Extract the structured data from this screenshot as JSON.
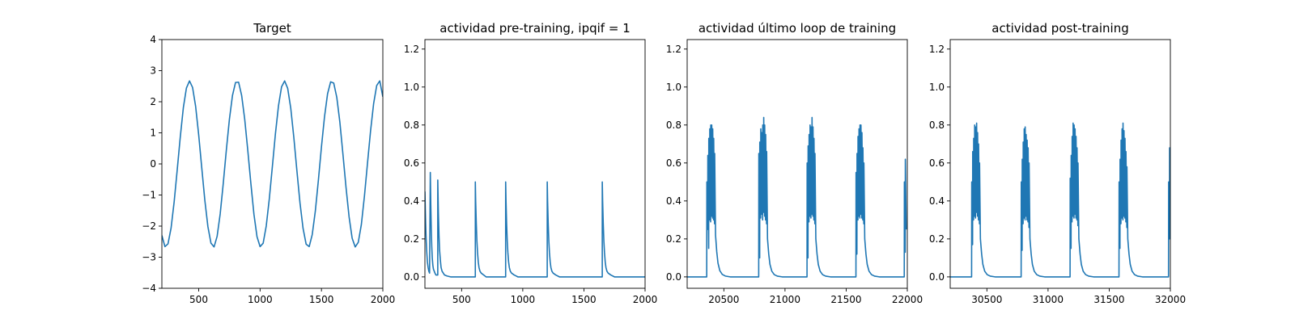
{
  "chart_data": [
    {
      "type": "line",
      "title": "Target",
      "xlim": [
        200,
        2000
      ],
      "ylim": [
        -4,
        4
      ],
      "x_ticks": [
        500,
        1000,
        1500,
        2000
      ],
      "y_ticks": [
        -4,
        -3,
        -2,
        -1,
        0,
        1,
        2,
        3,
        4
      ],
      "series": [
        {
          "color": "#1f77b4",
          "x": [
            200,
            225,
            250,
            275,
            300,
            325,
            350,
            375,
            400,
            425,
            450,
            475,
            500,
            525,
            550,
            575,
            600,
            625,
            650,
            675,
            700,
            725,
            750,
            775,
            800,
            825,
            850,
            875,
            900,
            925,
            950,
            975,
            1000,
            1025,
            1050,
            1075,
            1100,
            1125,
            1150,
            1175,
            1200,
            1225,
            1250,
            1275,
            1300,
            1325,
            1350,
            1375,
            1400,
            1425,
            1450,
            1475,
            1500,
            1525,
            1550,
            1575,
            1600,
            1625,
            1650,
            1675,
            1700,
            1725,
            1750,
            1775,
            1800,
            1825,
            1850,
            1875,
            1900,
            1925,
            1950,
            1975,
            2000
          ],
          "y": [
            -2.3,
            -2.66,
            -2.57,
            -2.06,
            -1.22,
            -0.19,
            0.87,
            1.81,
            2.44,
            2.67,
            2.46,
            1.85,
            0.93,
            -0.13,
            -1.17,
            -2.02,
            -2.55,
            -2.67,
            -2.33,
            -1.61,
            -0.63,
            0.44,
            1.43,
            2.2,
            2.62,
            2.63,
            2.2,
            1.43,
            0.43,
            -0.63,
            -1.62,
            -2.34,
            -2.66,
            -2.55,
            -2.0,
            -1.13,
            -0.09,
            0.97,
            1.87,
            2.48,
            2.67,
            2.43,
            1.79,
            0.85,
            -0.22,
            -1.25,
            -2.07,
            -2.58,
            -2.66,
            -2.27,
            -1.52,
            -0.52,
            0.55,
            1.52,
            2.26,
            2.64,
            2.6,
            2.14,
            1.34,
            0.31,
            -0.75,
            -1.7,
            -2.39,
            -2.67,
            -2.52,
            -1.95,
            -1.04,
            0.02,
            1.06,
            1.94,
            2.52,
            2.67,
            2.16
          ]
        }
      ]
    },
    {
      "type": "line",
      "title": "actividad pre-training, ipqif = 1",
      "xlim": [
        200,
        2000
      ],
      "ylim": [
        -0.06,
        1.25
      ],
      "x_ticks": [
        500,
        1000,
        1500,
        2000
      ],
      "y_ticks": [
        0.0,
        0.2,
        0.4,
        0.6,
        0.8,
        1.0,
        1.2
      ],
      "series": [
        {
          "color": "#1f77b4",
          "x": [
            200,
            203,
            206,
            210,
            215,
            220,
            226,
            232,
            238,
            244,
            244.1,
            248,
            252,
            256,
            260,
            265,
            270,
            276,
            282,
            290,
            298,
            305,
            305.1,
            310,
            315,
            320,
            326,
            332,
            340,
            350,
            360,
            380,
            410,
            440,
            500,
            560,
            600,
            612,
            612.1,
            615,
            620,
            625,
            630,
            636,
            642,
            650,
            660,
            680,
            700,
            760,
            820,
            860,
            860.1,
            863,
            868,
            873,
            878,
            884,
            890,
            898,
            908,
            930,
            960,
            1020,
            1080,
            1140,
            1200,
            1200.1,
            1203,
            1208,
            1213,
            1218,
            1224,
            1230,
            1238,
            1248,
            1270,
            1300,
            1350,
            1400,
            1500,
            1600,
            1650,
            1650.1,
            1653,
            1658,
            1663,
            1668,
            1674,
            1680,
            1688,
            1698,
            1720,
            1750,
            1800,
            1900,
            2000
          ],
          "y": [
            0.45,
            0.36,
            0.28,
            0.2,
            0.13,
            0.08,
            0.05,
            0.03,
            0.02,
            0.55,
            0.55,
            0.38,
            0.25,
            0.16,
            0.1,
            0.06,
            0.04,
            0.03,
            0.02,
            0.01,
            0.01,
            0.01,
            0.51,
            0.34,
            0.22,
            0.14,
            0.09,
            0.05,
            0.03,
            0.02,
            0.01,
            0.005,
            0.0,
            0.0,
            0.0,
            0.0,
            0.0,
            0.0,
            0.5,
            0.4,
            0.28,
            0.19,
            0.13,
            0.08,
            0.05,
            0.03,
            0.02,
            0.01,
            0.0,
            0.0,
            0.0,
            0.0,
            0.5,
            0.4,
            0.28,
            0.19,
            0.13,
            0.08,
            0.05,
            0.03,
            0.02,
            0.01,
            0.0,
            0.0,
            0.0,
            0.0,
            0.0,
            0.5,
            0.4,
            0.28,
            0.19,
            0.13,
            0.08,
            0.05,
            0.03,
            0.02,
            0.01,
            0.0,
            0.0,
            0.0,
            0.0,
            0.0,
            0.0,
            0.5,
            0.4,
            0.28,
            0.19,
            0.13,
            0.08,
            0.05,
            0.03,
            0.02,
            0.01,
            0.0,
            0.0,
            0.0,
            0.0
          ]
        }
      ]
    },
    {
      "type": "line",
      "title": "actividad último loop de training",
      "xlim": [
        20200,
        22000
      ],
      "ylim": [
        -0.06,
        1.25
      ],
      "x_ticks": [
        20500,
        21000,
        21500,
        22000
      ],
      "y_ticks": [
        0.0,
        0.2,
        0.4,
        0.6,
        0.8,
        1.0,
        1.2
      ],
      "bursts": [
        {
          "start": 20360,
          "peaks": [
            0.5,
            0.64,
            0.73,
            0.78,
            0.8,
            0.8,
            0.78,
            0.73,
            0.65
          ],
          "troughs": [
            0.25,
            0.15,
            0.3,
            0.29,
            0.32,
            0.31,
            0.3,
            0.28,
            0.22
          ]
        },
        {
          "start": 20785,
          "peaks": [
            0.65,
            0.71,
            0.78,
            0.76,
            0.8,
            0.84,
            0.8,
            0.75,
            0.66
          ],
          "troughs": [
            0.1,
            0.31,
            0.33,
            0.3,
            0.34,
            0.32,
            0.3,
            0.28,
            0.2
          ]
        },
        {
          "start": 21180,
          "peaks": [
            0.6,
            0.69,
            0.75,
            0.8,
            0.79,
            0.84,
            0.79,
            0.73,
            0.65
          ],
          "troughs": [
            0.1,
            0.29,
            0.32,
            0.31,
            0.33,
            0.32,
            0.3,
            0.28,
            0.2
          ]
        },
        {
          "start": 21580,
          "peaks": [
            0.55,
            0.65,
            0.74,
            0.78,
            0.8,
            0.8,
            0.76,
            0.68,
            0.6
          ],
          "troughs": [
            0.12,
            0.3,
            0.32,
            0.31,
            0.33,
            0.31,
            0.3,
            0.28,
            0.2
          ]
        },
        {
          "start": 21975,
          "peaks": [
            0.5,
            0.62
          ],
          "troughs": [
            0.13,
            0.25
          ]
        }
      ]
    },
    {
      "type": "line",
      "title": "actividad post-training",
      "xlim": [
        30200,
        32000
      ],
      "ylim": [
        -0.06,
        1.25
      ],
      "x_ticks": [
        30500,
        31000,
        31500,
        32000
      ],
      "y_ticks": [
        0.0,
        0.2,
        0.4,
        0.6,
        0.8,
        1.0,
        1.2
      ],
      "bursts": [
        {
          "start": 30375,
          "peaks": [
            0.5,
            0.66,
            0.73,
            0.8,
            0.79,
            0.81,
            0.76,
            0.7,
            0.6
          ],
          "troughs": [
            0.17,
            0.3,
            0.32,
            0.31,
            0.34,
            0.32,
            0.3,
            0.28,
            0.2
          ]
        },
        {
          "start": 30780,
          "peaks": [
            0.5,
            0.62,
            0.71,
            0.78,
            0.79,
            0.75,
            0.72,
            0.68,
            0.6
          ],
          "troughs": [
            0.14,
            0.28,
            0.31,
            0.3,
            0.32,
            0.3,
            0.29,
            0.26,
            0.2
          ]
        },
        {
          "start": 31180,
          "peaks": [
            0.52,
            0.64,
            0.74,
            0.81,
            0.8,
            0.78,
            0.74,
            0.68,
            0.6
          ],
          "troughs": [
            0.15,
            0.29,
            0.32,
            0.31,
            0.33,
            0.31,
            0.3,
            0.27,
            0.2
          ]
        },
        {
          "start": 31580,
          "peaks": [
            0.5,
            0.62,
            0.72,
            0.78,
            0.81,
            0.77,
            0.73,
            0.66,
            0.58
          ],
          "troughs": [
            0.15,
            0.28,
            0.31,
            0.3,
            0.32,
            0.31,
            0.29,
            0.26,
            0.2
          ]
        },
        {
          "start": 31985,
          "peaks": [
            0.5,
            0.68
          ],
          "troughs": [
            0.2,
            0.2
          ]
        }
      ]
    }
  ]
}
